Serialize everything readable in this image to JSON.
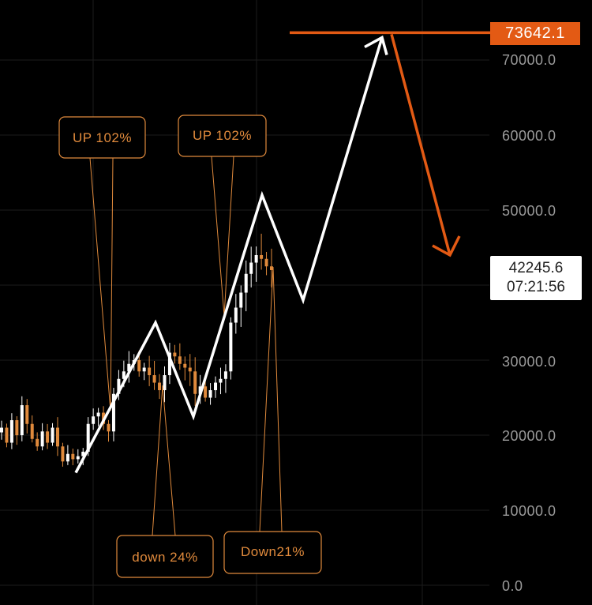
{
  "chart_data": {
    "type": "line",
    "title": "",
    "xlabel": "",
    "ylabel": "",
    "ylim": [
      0,
      78000
    ],
    "y_ticks": [
      "0.0",
      "10000.0",
      "20000.0",
      "30000.0",
      "50000.0",
      "60000.0",
      "70000.0"
    ],
    "target_price": "73642.1",
    "last_price": "42245.6",
    "countdown": "07:21:56",
    "annotations": [
      "UP 102%",
      "UP 102%",
      "down 24%",
      "Down21%"
    ],
    "path_points": [
      15000,
      35000,
      22500,
      52000,
      38000,
      73000
    ],
    "projected_drop": [
      73642,
      44000
    ],
    "price_series": [
      21000,
      19000,
      22000,
      20000,
      24000,
      21500,
      19500,
      18500,
      20500,
      19000,
      21000,
      18500,
      16500,
      17500,
      16800,
      17200,
      17800,
      21500,
      22500,
      23000,
      21500,
      20500,
      25500,
      27500,
      28500,
      29500,
      30000,
      28500,
      29000,
      28000,
      27000,
      26000,
      28000,
      31000,
      30500,
      29500,
      29000,
      28500,
      25500,
      26500,
      25000,
      26000,
      27000,
      27500,
      28500,
      35000,
      37000,
      39000,
      41500,
      43000,
      44000,
      43500,
      42500,
      42000
    ],
    "colors": {
      "accent": "#e35a14",
      "candle_up": "#ffffff",
      "candle_down": "#e08a3c",
      "annotation": "#e08a3c"
    }
  }
}
